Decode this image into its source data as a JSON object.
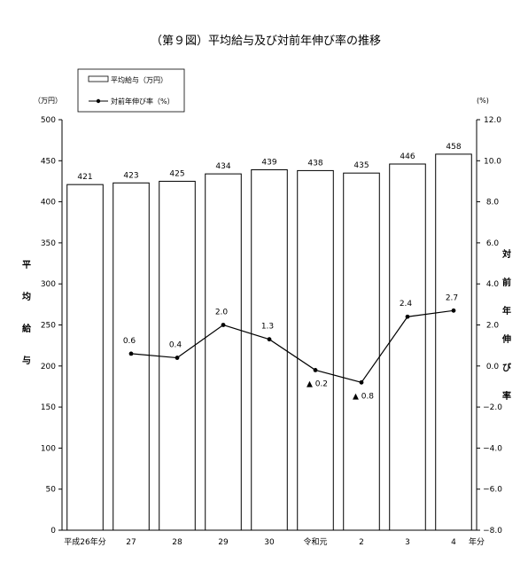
{
  "chart_data": {
    "type": "bar",
    "title": "（第９図）平均給与及び対前年伸び率の推移",
    "categories": [
      "平成26年分",
      "27",
      "28",
      "29",
      "30",
      "令和元",
      "2",
      "3",
      "4"
    ],
    "x_unit": "年分",
    "series": [
      {
        "name": "平均給与（万円）",
        "type": "bar",
        "axis": "left",
        "values": [
          421,
          423,
          425,
          434,
          439,
          438,
          435,
          446,
          458
        ],
        "labels": [
          "421",
          "423",
          "425",
          "434",
          "439",
          "438",
          "435",
          "446",
          "458"
        ]
      },
      {
        "name": "対前年伸び率（%）",
        "type": "line",
        "axis": "right",
        "values": [
          null,
          0.6,
          0.4,
          2.0,
          1.3,
          -0.2,
          -0.8,
          2.4,
          2.7
        ],
        "labels": [
          "",
          "0.6",
          "0.4",
          "2.0",
          "1.3",
          "▲ 0.2",
          "▲ 0.8",
          "2.4",
          "2.7"
        ]
      }
    ],
    "left_axis": {
      "unit": "（万円）",
      "label": [
        "平",
        "均",
        "給",
        "与"
      ],
      "ylim": [
        0,
        500
      ],
      "ticks": [
        "0",
        "50",
        "100",
        "150",
        "200",
        "250",
        "300",
        "350",
        "400",
        "450",
        "500"
      ]
    },
    "right_axis": {
      "unit": "(%)",
      "label": [
        "対",
        "前",
        "年",
        "伸",
        "び",
        "率"
      ],
      "ylim": [
        -8,
        12
      ],
      "ticks": [
        "−8.0",
        "−6.0",
        "−4.0",
        "−2.0",
        "0.0",
        "2.0",
        "4.0",
        "6.0",
        "8.0",
        "10.0",
        "12.0"
      ]
    },
    "legend": {
      "position": "top-left"
    },
    "grid": false
  }
}
